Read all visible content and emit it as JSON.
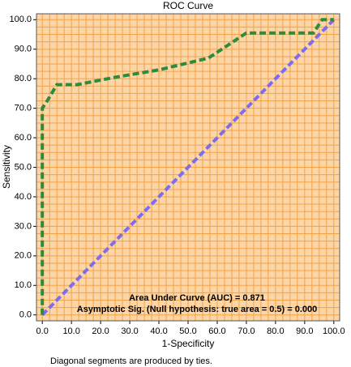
{
  "chart_data": {
    "type": "line",
    "title": "ROC Curve",
    "xlabel": "1-Specificity",
    "ylabel": "Sensitivity",
    "annotations": [
      "Area Under Curve (AUC) = 0.871",
      "Asymptotic Sig. (Null hypothesis: true area = 0.5) = 0.000"
    ],
    "footnote": "Diagonal segments are produced by ties.",
    "xlim": [
      -2,
      102
    ],
    "ylim": [
      -2,
      102
    ],
    "xticks": [
      {
        "value": 0,
        "label": "0.0"
      },
      {
        "value": 10,
        "label": "10.0"
      },
      {
        "value": 20,
        "label": "20.0"
      },
      {
        "value": 30,
        "label": "30.0"
      },
      {
        "value": 40,
        "label": "40.0"
      },
      {
        "value": 50,
        "label": "50.0"
      },
      {
        "value": 60,
        "label": "60.0"
      },
      {
        "value": 70,
        "label": "70.0"
      },
      {
        "value": 80,
        "label": "80.0"
      },
      {
        "value": 90,
        "label": "90.0"
      },
      {
        "value": 100,
        "label": "100.0"
      }
    ],
    "yticks": [
      {
        "value": 0,
        "label": "0.0"
      },
      {
        "value": 10,
        "label": "10.0"
      },
      {
        "value": 20,
        "label": "20.0"
      },
      {
        "value": 30,
        "label": "30.0"
      },
      {
        "value": 40,
        "label": "40.0"
      },
      {
        "value": 50,
        "label": "50.0"
      },
      {
        "value": 60,
        "label": "60.0"
      },
      {
        "value": 70,
        "label": "70.0"
      },
      {
        "value": 80,
        "label": "80.0"
      },
      {
        "value": 90,
        "label": "90.0"
      },
      {
        "value": 100,
        "label": "100.0"
      }
    ],
    "grid": true,
    "minor_divisions": 4,
    "background_color": "#fcd6a6",
    "grid_color": "#f4a246",
    "series": [
      {
        "color": "#7b6cf0",
        "x": [
          0,
          100
        ],
        "values": [
          0,
          100
        ]
      },
      {
        "color": "#2e8b3d",
        "x": [
          0,
          0,
          2,
          5,
          12,
          25,
          40,
          57,
          70,
          93,
          96,
          100
        ],
        "values": [
          0,
          70,
          73,
          78,
          78,
          80.5,
          83,
          87,
          95.5,
          95.5,
          100,
          100
        ]
      }
    ]
  }
}
